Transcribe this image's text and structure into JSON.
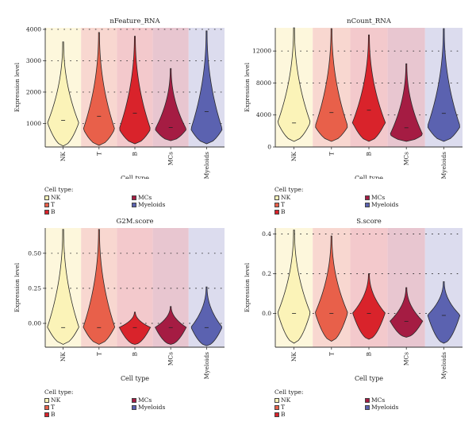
{
  "colors": {
    "NK": "#fbf3b8",
    "T": "#e8604a",
    "B": "#d9232b",
    "MCs": "#a51c43",
    "Myeloids": "#5b62b0"
  },
  "band_colors": [
    "#fdf7dc",
    "#f8d7d0",
    "#f3c9cc",
    "#e8c6d0",
    "#dcdcee"
  ],
  "legend": {
    "title": "Cell type:",
    "items": [
      "NK",
      "T",
      "B",
      "MCs",
      "Myeloids"
    ]
  },
  "chart_data": [
    {
      "type": "violin",
      "title": "nFeature_RNA",
      "xlabel": "Cell type",
      "ylabel": "Expression level",
      "categories": [
        "NK",
        "T",
        "B",
        "MCs",
        "Myeloids"
      ],
      "yticks": [
        1000,
        2000,
        3000,
        4000
      ],
      "ylim": [
        250,
        4050
      ],
      "min": [
        280,
        300,
        350,
        450,
        350
      ],
      "max": [
        3600,
        3900,
        3780,
        2750,
        3950
      ],
      "median": [
        1100,
        1230,
        1330,
        870,
        1380
      ],
      "mode": [
        1000,
        800,
        800,
        800,
        800
      ]
    },
    {
      "type": "violin",
      "title": "nCount_RNA",
      "xlabel": "Cell type",
      "ylabel": "Expression level",
      "categories": [
        "NK",
        "T",
        "B",
        "MCs",
        "Myeloids"
      ],
      "yticks": [
        0,
        4000,
        8000,
        12000
      ],
      "ylim": [
        0,
        14900
      ],
      "min": [
        700,
        700,
        700,
        700,
        700
      ],
      "max": [
        14900,
        14800,
        14000,
        10400,
        14800
      ],
      "median": [
        3000,
        4300,
        4600,
        2400,
        4200
      ],
      "mode": [
        3000,
        2500,
        3000,
        1500,
        2500
      ]
    },
    {
      "type": "violin",
      "title": "G2M.score",
      "xlabel": "Cell type",
      "ylabel": "Expression level",
      "categories": [
        "NK",
        "T",
        "B",
        "MCs",
        "Myeloids"
      ],
      "yticks": [
        0.0,
        0.25,
        0.5
      ],
      "tick_labels": [
        "0.00",
        "0.25",
        "0.50"
      ],
      "ylim": [
        -0.17,
        0.68
      ],
      "min": [
        -0.15,
        -0.15,
        -0.15,
        -0.15,
        -0.16
      ],
      "max": [
        0.67,
        0.67,
        0.08,
        0.12,
        0.26
      ],
      "median": [
        -0.03,
        -0.03,
        -0.03,
        -0.03,
        -0.03
      ],
      "mode": [
        -0.03,
        -0.03,
        -0.03,
        -0.03,
        -0.03
      ]
    },
    {
      "type": "violin",
      "title": "S.score",
      "xlabel": "Cell type",
      "ylabel": "Expression level",
      "categories": [
        "NK",
        "T",
        "B",
        "MCs",
        "Myeloids"
      ],
      "yticks": [
        0.0,
        0.2,
        0.4
      ],
      "tick_labels": [
        "0.0",
        "0.2",
        "0.4"
      ],
      "ylim": [
        -0.17,
        0.43
      ],
      "min": [
        -0.15,
        -0.14,
        -0.13,
        -0.12,
        -0.15
      ],
      "max": [
        0.42,
        0.39,
        0.2,
        0.13,
        0.16
      ],
      "median": [
        0.0,
        0.0,
        0.0,
        -0.04,
        -0.01
      ],
      "mode": [
        0.0,
        0.0,
        0.0,
        -0.04,
        -0.01
      ]
    }
  ]
}
